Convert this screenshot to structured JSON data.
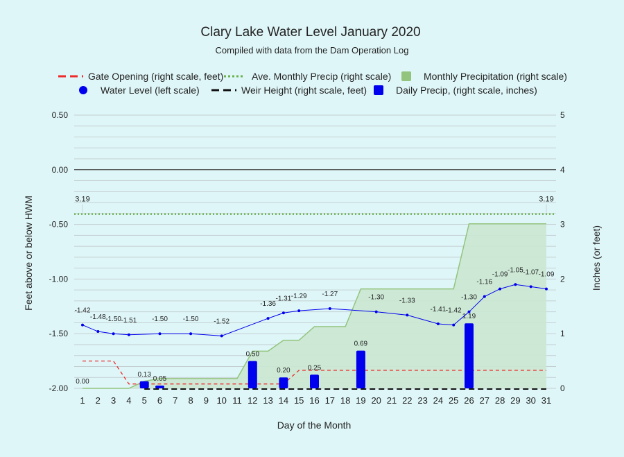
{
  "chart_data": {
    "type": "line",
    "title": "Clary Lake Water Level January 2020",
    "subtitle": "Compiled with data from the Dam Operation Log",
    "xlabel": "Day of the Month",
    "ylabel_left": "Feet above or below HWM",
    "ylabel_right": "Inches (or feet)",
    "x": [
      1,
      2,
      3,
      4,
      5,
      6,
      7,
      8,
      9,
      10,
      11,
      12,
      13,
      14,
      15,
      16,
      17,
      18,
      19,
      20,
      21,
      22,
      23,
      24,
      25,
      26,
      27,
      28,
      29,
      30,
      31
    ],
    "left_ylim": [
      -2.0,
      0.5
    ],
    "left_ticks": [
      "0.50",
      "0.00",
      "-0.50",
      "-1.00",
      "-1.50",
      "-2.00"
    ],
    "right_ylim": [
      0,
      5
    ],
    "right_ticks": [
      "5",
      "4",
      "3",
      "2",
      "1",
      "0"
    ],
    "grid": true,
    "legend_position": "top",
    "legend": [
      {
        "label": "Gate Opening (right scale, feet)",
        "type": "dash",
        "color": "#ee2a2a"
      },
      {
        "label": "Ave. Monthly Precip (right scale)",
        "type": "dot",
        "color": "#6ab04c"
      },
      {
        "label": "Monthly Precipitation (right scale)",
        "type": "square",
        "color": "#93c47d"
      },
      {
        "label": "Water Level (left scale)",
        "type": "circle",
        "color": "#0000ee"
      },
      {
        "label": "Weir Height (right scale, feet)",
        "type": "dash",
        "color": "#111111"
      },
      {
        "label": "Daily Precip, (right scale, inches)",
        "type": "square",
        "color": "#0000ee"
      }
    ],
    "series": {
      "water_level": {
        "name": "Water Level (left scale)",
        "color": "#0000ee",
        "points": [
          {
            "x": 1,
            "y": -1.42,
            "label": "-1.42"
          },
          {
            "x": 2,
            "y": -1.48,
            "label": "-1.48"
          },
          {
            "x": 3,
            "y": -1.5,
            "label": "-1.50"
          },
          {
            "x": 4,
            "y": -1.51,
            "label": "-1.51"
          },
          {
            "x": 6,
            "y": -1.5,
            "label": "-1.50"
          },
          {
            "x": 8,
            "y": -1.5,
            "label": "-1.50"
          },
          {
            "x": 10,
            "y": -1.52,
            "label": "-1.52"
          },
          {
            "x": 13,
            "y": -1.36,
            "label": "-1.36"
          },
          {
            "x": 14,
            "y": -1.31,
            "label": "-1.31"
          },
          {
            "x": 15,
            "y": -1.29,
            "label": "-1.29"
          },
          {
            "x": 17,
            "y": -1.27,
            "label": "-1.27"
          },
          {
            "x": 20,
            "y": -1.3,
            "label": "-1.30"
          },
          {
            "x": 22,
            "y": -1.33,
            "label": "-1.33"
          },
          {
            "x": 24,
            "y": -1.41,
            "label": "-1.41"
          },
          {
            "x": 25,
            "y": -1.42,
            "label": "-1.42"
          },
          {
            "x": 26,
            "y": -1.3,
            "label": "-1.30"
          },
          {
            "x": 27,
            "y": -1.16,
            "label": "-1.16"
          },
          {
            "x": 28,
            "y": -1.09,
            "label": "-1.09"
          },
          {
            "x": 29,
            "y": -1.05,
            "label": "-1.05"
          },
          {
            "x": 30,
            "y": -1.07,
            "label": "-1.07"
          },
          {
            "x": 31,
            "y": -1.09,
            "label": "-1.09"
          }
        ]
      },
      "daily_precip": {
        "name": "Daily Precip, (right scale, inches)",
        "color": "#0000ee",
        "points": [
          {
            "x": 1,
            "y": 0.0,
            "label": "0.00"
          },
          {
            "x": 5,
            "y": 0.13,
            "label": "0.13"
          },
          {
            "x": 6,
            "y": 0.05,
            "label": "0.05"
          },
          {
            "x": 12,
            "y": 0.5,
            "label": "0.50"
          },
          {
            "x": 14,
            "y": 0.2,
            "label": "0.20"
          },
          {
            "x": 16,
            "y": 0.25,
            "label": "0.25"
          },
          {
            "x": 19,
            "y": 0.69,
            "label": "0.69"
          },
          {
            "x": 26,
            "y": 1.19,
            "label": "1.19"
          }
        ]
      },
      "monthly_precip": {
        "name": "Monthly Precipitation (right scale)",
        "color": "#93c47d",
        "fill": "#cbe8d2",
        "x": [
          1,
          2,
          3,
          4,
          5,
          6,
          7,
          8,
          9,
          10,
          11,
          12,
          13,
          14,
          15,
          16,
          17,
          18,
          19,
          20,
          21,
          22,
          23,
          24,
          25,
          26,
          27,
          28,
          29,
          30,
          31
        ],
        "values": [
          0,
          0,
          0,
          0,
          0.13,
          0.18,
          0.18,
          0.18,
          0.18,
          0.18,
          0.18,
          0.68,
          0.68,
          0.88,
          0.88,
          1.13,
          1.13,
          1.13,
          1.82,
          1.82,
          1.82,
          1.82,
          1.82,
          1.82,
          1.82,
          3.01,
          3.01,
          3.01,
          3.01,
          3.01,
          3.01
        ]
      },
      "avg_monthly_precip": {
        "name": "Ave. Monthly Precip (right scale)",
        "color": "#6ab04c",
        "value": 3.19,
        "labels": [
          {
            "x": 1,
            "label": "3.19"
          },
          {
            "x": 31,
            "label": "3.19"
          }
        ]
      },
      "gate_opening": {
        "name": "Gate Opening (right scale, feet)",
        "color": "#ee2a2a",
        "points": [
          {
            "x": 1,
            "y": 0.5
          },
          {
            "x": 3,
            "y": 0.5
          },
          {
            "x": 4,
            "y": 0.08
          },
          {
            "x": 14,
            "y": 0.08
          },
          {
            "x": 15,
            "y": 0.33
          },
          {
            "x": 31,
            "y": 0.33
          }
        ]
      },
      "weir_height": {
        "name": "Weir Height (right scale, feet)",
        "color": "#111111",
        "from_x": 5,
        "to_x": 31,
        "value": 0
      }
    }
  }
}
